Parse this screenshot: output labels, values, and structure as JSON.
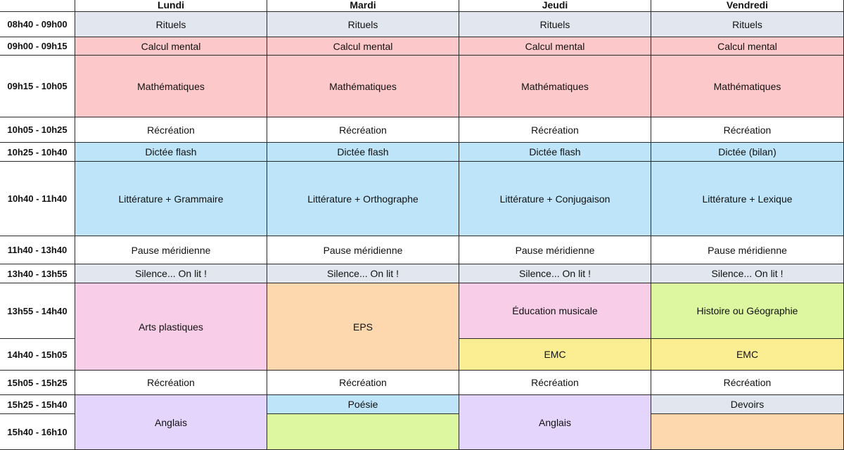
{
  "days": [
    "Lundi",
    "Mardi",
    "Jeudi",
    "Vendredi"
  ],
  "slots": [
    "08h40 - 09h00",
    "09h00 - 09h15",
    "09h15 - 10h05",
    "10h05 - 10h25",
    "10h25 - 10h40",
    "10h40 - 11h40",
    "11h40 - 13h40",
    "13h40 - 13h55",
    "13h55 - 14h40",
    "14h40 - 15h05",
    "15h05 - 15h25",
    "15h25 - 15h40",
    "15h40 - 16h10"
  ],
  "colors": {
    "white": "#ffffff",
    "grey": "#e2e7ef",
    "red": "#fdc8ca",
    "blue": "#bde4f8",
    "pink": "#f8cde8",
    "orange": "#fdd7ae",
    "lime": "#dcf79f",
    "yellow": "#fbee92",
    "violet": "#e3d5fb"
  },
  "activities": [
    {
      "day": 0,
      "slot": 0,
      "span": 1,
      "label": "Rituels",
      "color": "grey"
    },
    {
      "day": 1,
      "slot": 0,
      "span": 1,
      "label": "Rituels",
      "color": "grey"
    },
    {
      "day": 2,
      "slot": 0,
      "span": 1,
      "label": "Rituels",
      "color": "grey"
    },
    {
      "day": 3,
      "slot": 0,
      "span": 1,
      "label": "Rituels",
      "color": "grey"
    },
    {
      "day": 0,
      "slot": 1,
      "span": 1,
      "label": "Calcul mental",
      "color": "red"
    },
    {
      "day": 1,
      "slot": 1,
      "span": 1,
      "label": "Calcul mental",
      "color": "red"
    },
    {
      "day": 2,
      "slot": 1,
      "span": 1,
      "label": "Calcul mental",
      "color": "red"
    },
    {
      "day": 3,
      "slot": 1,
      "span": 1,
      "label": "Calcul mental",
      "color": "red"
    },
    {
      "day": 0,
      "slot": 2,
      "span": 1,
      "label": "Mathématiques",
      "color": "red"
    },
    {
      "day": 1,
      "slot": 2,
      "span": 1,
      "label": "Mathématiques",
      "color": "red"
    },
    {
      "day": 2,
      "slot": 2,
      "span": 1,
      "label": "Mathématiques",
      "color": "red"
    },
    {
      "day": 3,
      "slot": 2,
      "span": 1,
      "label": "Mathématiques",
      "color": "red"
    },
    {
      "day": 0,
      "slot": 3,
      "span": 1,
      "label": "Récréation",
      "color": "white"
    },
    {
      "day": 1,
      "slot": 3,
      "span": 1,
      "label": "Récréation",
      "color": "white"
    },
    {
      "day": 2,
      "slot": 3,
      "span": 1,
      "label": "Récréation",
      "color": "white"
    },
    {
      "day": 3,
      "slot": 3,
      "span": 1,
      "label": "Récréation",
      "color": "white"
    },
    {
      "day": 0,
      "slot": 4,
      "span": 1,
      "label": "Dictée flash",
      "color": "blue"
    },
    {
      "day": 1,
      "slot": 4,
      "span": 1,
      "label": "Dictée flash",
      "color": "blue"
    },
    {
      "day": 2,
      "slot": 4,
      "span": 1,
      "label": "Dictée flash",
      "color": "blue"
    },
    {
      "day": 3,
      "slot": 4,
      "span": 1,
      "label": "Dictée (bilan)",
      "color": "blue"
    },
    {
      "day": 0,
      "slot": 5,
      "span": 1,
      "label": "Littérature + Grammaire",
      "color": "blue"
    },
    {
      "day": 1,
      "slot": 5,
      "span": 1,
      "label": "Littérature + Orthographe",
      "color": "blue"
    },
    {
      "day": 2,
      "slot": 5,
      "span": 1,
      "label": "Littérature + Conjugaison",
      "color": "blue"
    },
    {
      "day": 3,
      "slot": 5,
      "span": 1,
      "label": "Littérature + Lexique",
      "color": "blue"
    },
    {
      "day": 0,
      "slot": 6,
      "span": 1,
      "label": "Pause méridienne",
      "color": "white"
    },
    {
      "day": 1,
      "slot": 6,
      "span": 1,
      "label": "Pause méridienne",
      "color": "white"
    },
    {
      "day": 2,
      "slot": 6,
      "span": 1,
      "label": "Pause méridienne",
      "color": "white"
    },
    {
      "day": 3,
      "slot": 6,
      "span": 1,
      "label": "Pause méridienne",
      "color": "white"
    },
    {
      "day": 0,
      "slot": 7,
      "span": 1,
      "label": "Silence... On lit !",
      "color": "grey"
    },
    {
      "day": 1,
      "slot": 7,
      "span": 1,
      "label": "Silence... On lit !",
      "color": "grey"
    },
    {
      "day": 2,
      "slot": 7,
      "span": 1,
      "label": "Silence... On lit !",
      "color": "grey"
    },
    {
      "day": 3,
      "slot": 7,
      "span": 1,
      "label": "Silence... On lit !",
      "color": "grey"
    },
    {
      "day": 0,
      "slot": 8,
      "span": 2,
      "label": "Arts plastiques",
      "color": "pink"
    },
    {
      "day": 1,
      "slot": 8,
      "span": 2,
      "label": "EPS",
      "color": "orange"
    },
    {
      "day": 2,
      "slot": 8,
      "span": 1,
      "label": "Éducation musicale",
      "color": "pink"
    },
    {
      "day": 3,
      "slot": 8,
      "span": 1,
      "label": "Histoire ou Géographie",
      "color": "lime"
    },
    {
      "day": 2,
      "slot": 9,
      "span": 1,
      "label": "EMC",
      "color": "yellow"
    },
    {
      "day": 3,
      "slot": 9,
      "span": 1,
      "label": "EMC",
      "color": "yellow"
    },
    {
      "day": 0,
      "slot": 10,
      "span": 1,
      "label": "Récréation",
      "color": "white"
    },
    {
      "day": 1,
      "slot": 10,
      "span": 1,
      "label": "Récréation",
      "color": "white"
    },
    {
      "day": 2,
      "slot": 10,
      "span": 1,
      "label": "Récréation",
      "color": "white"
    },
    {
      "day": 3,
      "slot": 10,
      "span": 1,
      "label": "Récréation",
      "color": "white"
    },
    {
      "day": 0,
      "slot": 11,
      "span": 2,
      "label": "Anglais",
      "color": "violet"
    },
    {
      "day": 1,
      "slot": 11,
      "span": 1,
      "label": "Poésie",
      "color": "blue"
    },
    {
      "day": 1,
      "slot": 12,
      "span": 1,
      "label": "",
      "color": "lime"
    },
    {
      "day": 2,
      "slot": 11,
      "span": 2,
      "label": "Anglais",
      "color": "violet"
    },
    {
      "day": 3,
      "slot": 11,
      "span": 1,
      "label": "Devoirs",
      "color": "grey"
    },
    {
      "day": 3,
      "slot": 12,
      "span": 1,
      "label": "",
      "color": "orange"
    }
  ]
}
